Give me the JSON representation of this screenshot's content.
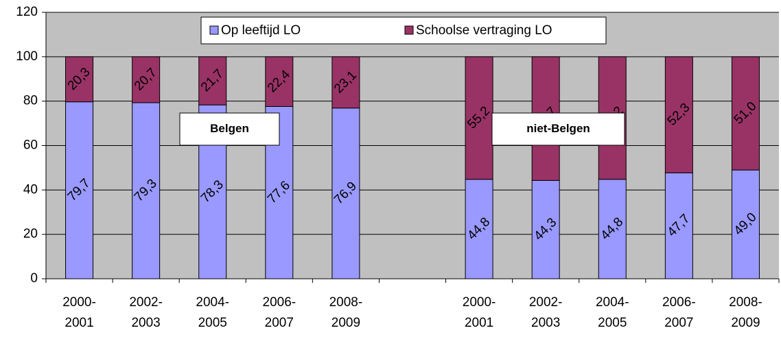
{
  "chart_data": {
    "type": "stacked-bar",
    "categories": [
      "2000-2001",
      "2002-2003",
      "2004-2005",
      "2006-2007",
      "2008-2009",
      null,
      "2000-2001",
      "2002-2003",
      "2004-2005",
      "2006-2007",
      "2008-2009"
    ],
    "series": [
      {
        "name": "Op leeftijd LO",
        "color": "#9999ff",
        "values": [
          79.7,
          79.3,
          78.3,
          77.6,
          76.9,
          null,
          44.8,
          44.3,
          44.8,
          47.7,
          49.0
        ],
        "value_labels": [
          "79,7",
          "79,3",
          "78,3",
          "77,6",
          "76,9",
          null,
          "44,8",
          "44,3",
          "44,8",
          "47,7",
          "49,0"
        ]
      },
      {
        "name": "Schoolse vertraging LO",
        "color": "#993366",
        "values": [
          20.3,
          20.7,
          21.7,
          22.4,
          23.1,
          null,
          55.2,
          55.7,
          55.2,
          52.3,
          51.0
        ],
        "value_labels": [
          "20,3",
          "20,7",
          "21,7",
          "22,4",
          "23,1",
          null,
          "55,2",
          "55,7",
          "55,2",
          "52,3",
          "51,0"
        ]
      }
    ],
    "annotations": [
      "Belgen",
      "niet-Belgen"
    ],
    "ylim": [
      0,
      120
    ],
    "yticks": [
      0,
      20,
      40,
      60,
      80,
      100,
      120
    ],
    "grid": true,
    "legend": "top"
  }
}
